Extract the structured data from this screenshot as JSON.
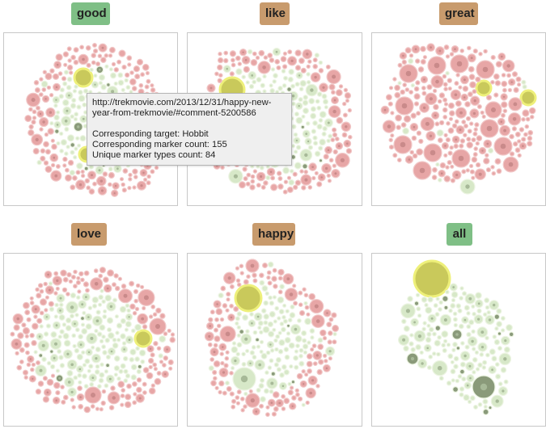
{
  "colors": {
    "green_badge": "#7fbf86",
    "tan_badge": "#c89b6d",
    "pink_fill": "#e7a6a6",
    "pink_stroke": "#f1c7c7",
    "green_fill": "#d7e8c8",
    "green_stroke": "#ecf4e2",
    "dark_fill": "#8a9a7a",
    "yellow_fill": "#c9c95b",
    "yellow_stroke": "#eef07a"
  },
  "panels": [
    {
      "label": "good",
      "badge_color": "green"
    },
    {
      "label": "like",
      "badge_color": "tan"
    },
    {
      "label": "great",
      "badge_color": "tan"
    },
    {
      "label": "love",
      "badge_color": "tan"
    },
    {
      "label": "happy",
      "badge_color": "tan"
    },
    {
      "label": "all",
      "badge_color": "green"
    }
  ],
  "tooltip": {
    "url_line1": "http://trekmovie.com/2013/12/31/happy-new-",
    "url_line2": "year-from-trekmovie/#comment-5200586",
    "target": "Corresponding target: Hobbit",
    "marker_count": "Corresponding marker count: 155",
    "unique_count": "Unique marker types count: 84"
  }
}
